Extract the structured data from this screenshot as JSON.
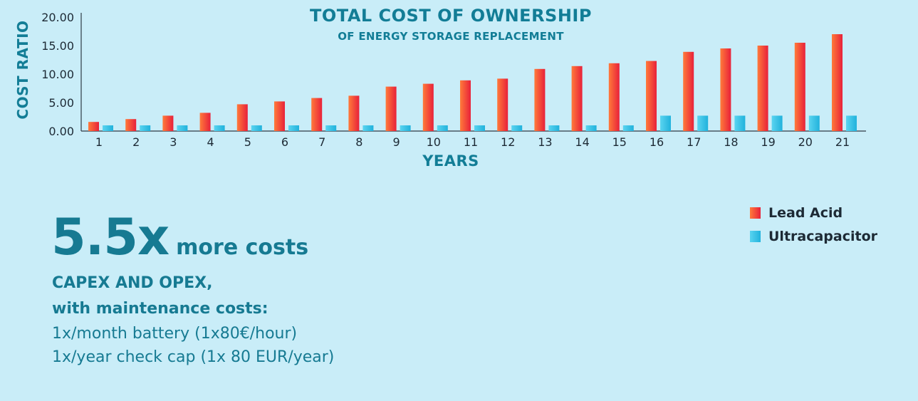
{
  "chart_data": {
    "type": "bar",
    "title": "TOTAL COST OF OWNERSHIP",
    "subtitle": "OF ENERGY STORAGE REPLACEMENT",
    "xlabel": "YEARS",
    "ylabel": "COST RATIO",
    "ylim": [
      0,
      20
    ],
    "yticks": [
      "0.00",
      "5.00",
      "10.00",
      "15.00",
      "20.00"
    ],
    "categories": [
      "1",
      "2",
      "3",
      "4",
      "5",
      "6",
      "7",
      "8",
      "9",
      "10",
      "11",
      "12",
      "13",
      "14",
      "15",
      "16",
      "17",
      "18",
      "19",
      "20",
      "21"
    ],
    "series": [
      {
        "name": "Lead Acid",
        "values": [
          1.6,
          2.1,
          2.7,
          3.2,
          4.7,
          5.2,
          5.8,
          6.2,
          7.8,
          8.3,
          8.9,
          9.2,
          10.9,
          11.4,
          11.9,
          12.3,
          13.9,
          14.5,
          15.0,
          15.5,
          17.0
        ]
      },
      {
        "name": "Ultracapacitor",
        "values": [
          1.0,
          1.0,
          1.0,
          1.0,
          1.0,
          1.0,
          1.0,
          1.0,
          1.0,
          1.0,
          1.0,
          1.0,
          1.0,
          1.0,
          1.0,
          2.7,
          2.7,
          2.7,
          2.7,
          2.7,
          2.7
        ]
      }
    ],
    "grid": false,
    "legend_position": "right",
    "colors": {
      "lead_acid": "#ea2b3a",
      "ultracapacitor": "#2ab8e0",
      "text": "#127d96"
    }
  },
  "legend": {
    "lead_acid": "Lead Acid",
    "ultracapacitor": "Ultracapacitor"
  },
  "summary": {
    "big_number": "5.5x",
    "big_rest": "more costs",
    "capex": "CAPEX AND OPEX,",
    "maintenance": "with maintenance costs:",
    "detail_1": "1x/month battery (1x80€/hour)",
    "detail_2": "1x/year check cap (1x 80 EUR/year)"
  }
}
